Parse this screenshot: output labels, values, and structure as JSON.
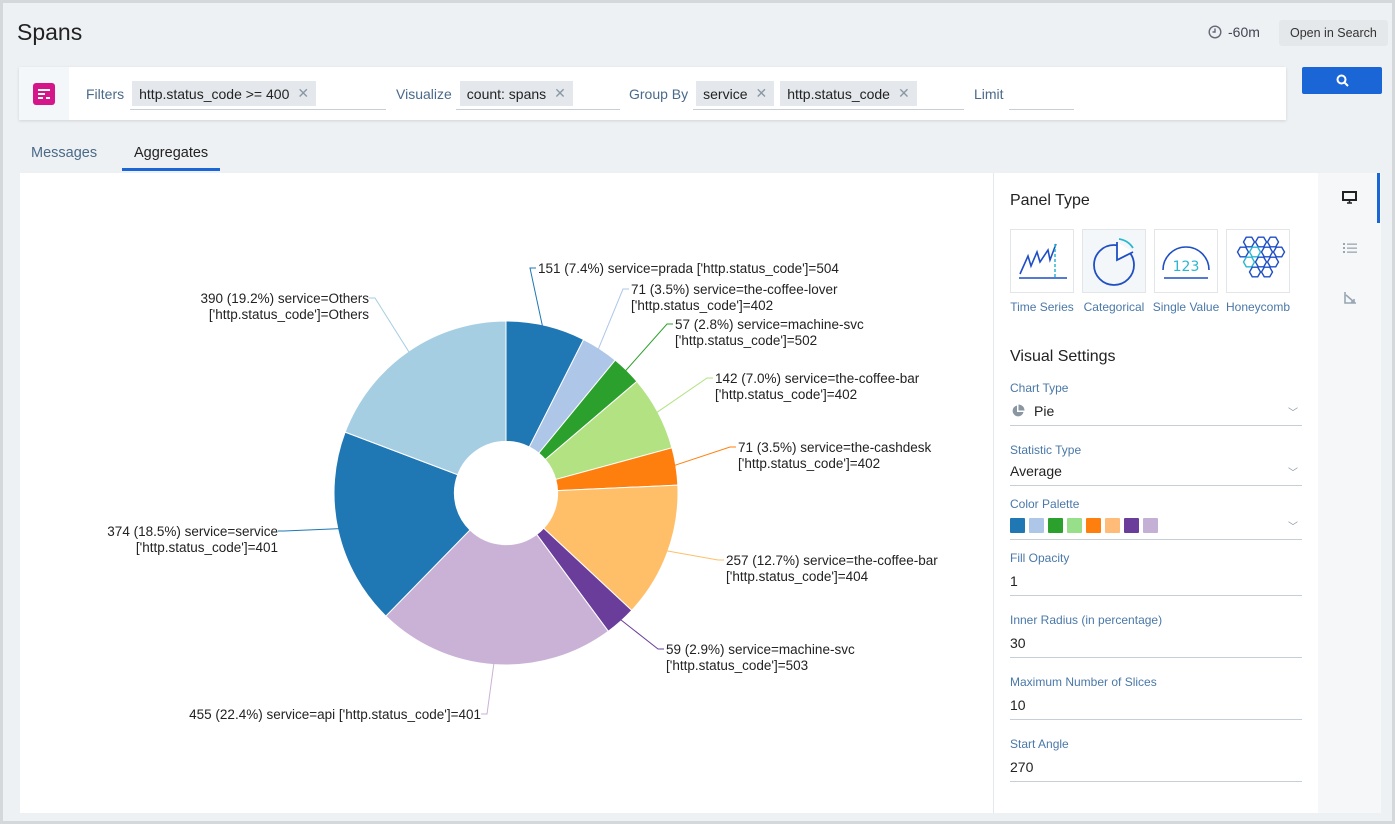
{
  "header": {
    "title": "Spans",
    "time_range": "-60m",
    "open_in_search": "Open in Search"
  },
  "query": {
    "filters_label": "Filters",
    "filters": [
      "http.status_code >= 400"
    ],
    "visualize_label": "Visualize",
    "visualize": [
      "count: spans"
    ],
    "group_by_label": "Group By",
    "group_by": [
      "service",
      "http.status_code"
    ],
    "limit_label": "Limit",
    "limit_value": ""
  },
  "tabs": [
    {
      "label": "Messages",
      "active": false
    },
    {
      "label": "Aggregates",
      "active": true
    }
  ],
  "settings": {
    "panel_type_title": "Panel Type",
    "panel_types": [
      {
        "label": "Time Series"
      },
      {
        "label": "Categorical",
        "selected": true
      },
      {
        "label": "Single Value"
      },
      {
        "label": "Honeycomb"
      }
    ],
    "visual_settings_title": "Visual Settings",
    "chart_type_label": "Chart Type",
    "chart_type": "Pie",
    "statistic_type_label": "Statistic Type",
    "statistic_type": "Average",
    "color_palette_label": "Color Palette",
    "palette": [
      "#1f77b4",
      "#aec7e8",
      "#2ca02c",
      "#98df8a",
      "#ff7f0e",
      "#ffbb78",
      "#6a3d9a",
      "#c5b0d5"
    ],
    "fill_opacity_label": "Fill Opacity",
    "fill_opacity": "1",
    "inner_radius_label": "Inner Radius (in percentage)",
    "inner_radius": "30",
    "max_slices_label": "Maximum Number of Slices",
    "max_slices": "10",
    "start_angle_label": "Start Angle",
    "start_angle": "270"
  },
  "chart_data": {
    "type": "pie",
    "inner_radius_pct": 30,
    "start_angle": 270,
    "slices": [
      {
        "value": 151,
        "pct": "7.4%",
        "line1": "151 (7.4%) service=prada ['http.status_code']=504",
        "line2": "",
        "color": "#1f77b4"
      },
      {
        "value": 71,
        "pct": "3.5%",
        "line1": "71 (3.5%) service=the-coffee-lover",
        "line2": "['http.status_code']=402",
        "color": "#aec7e8"
      },
      {
        "value": 57,
        "pct": "2.8%",
        "line1": "57 (2.8%) service=machine-svc",
        "line2": "['http.status_code']=502",
        "color": "#2ca02c"
      },
      {
        "value": 142,
        "pct": "7.0%",
        "line1": "142 (7.0%) service=the-coffee-bar",
        "line2": "['http.status_code']=402",
        "color": "#b3e283"
      },
      {
        "value": 71,
        "pct": "3.5%",
        "line1": "71 (3.5%) service=the-cashdesk",
        "line2": "['http.status_code']=402",
        "color": "#ff7f0e"
      },
      {
        "value": 257,
        "pct": "12.7%",
        "line1": "257 (12.7%) service=the-coffee-bar",
        "line2": "['http.status_code']=404",
        "color": "#ffbf69"
      },
      {
        "value": 59,
        "pct": "2.9%",
        "line1": "59 (2.9%) service=machine-svc",
        "line2": "['http.status_code']=503",
        "color": "#6a3d9a"
      },
      {
        "value": 455,
        "pct": "22.4%",
        "line1": "455 (22.4%) service=api ['http.status_code']=401",
        "line2": "",
        "color": "#cab2d6"
      },
      {
        "value": 374,
        "pct": "18.5%",
        "line1": "374 (18.5%) service=service",
        "line2": "['http.status_code']=401",
        "color": "#1f77b4"
      },
      {
        "value": 390,
        "pct": "19.2%",
        "line1": "390 (19.2%) service=Others",
        "line2": "['http.status_code']=Others",
        "color": "#a6cee3"
      }
    ]
  }
}
